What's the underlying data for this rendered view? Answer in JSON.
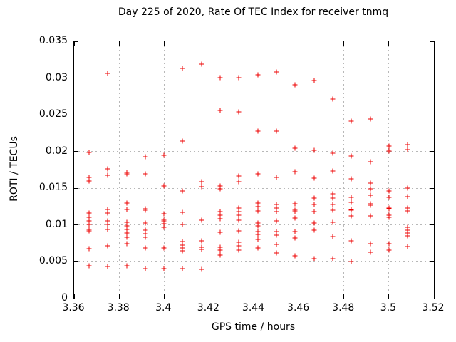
{
  "chart_data": {
    "type": "scatter",
    "title": "Day 225 of 2020, Rate Of TEC Index for receiver tnmq",
    "xlabel": "GPS time / hours",
    "ylabel": "ROTI / TECUs",
    "xlim": [
      3.36,
      3.52
    ],
    "ylim": [
      0,
      0.035
    ],
    "xticks": [
      3.36,
      3.38,
      3.4,
      3.42,
      3.44,
      3.46,
      3.48,
      3.5,
      3.52
    ],
    "xtick_labels": [
      "3.36",
      "3.38",
      "3.4",
      "3.42",
      "3.44",
      "3.46",
      "3.48",
      "3.5",
      "3.52"
    ],
    "yticks": [
      0,
      0.005,
      0.01,
      0.015,
      0.02,
      0.025,
      0.03,
      0.035
    ],
    "ytick_labels": [
      "0",
      "0.005",
      "0.01",
      "0.015",
      "0.02",
      "0.025",
      "0.03",
      "0.035"
    ],
    "grid": true,
    "legend_position": "none",
    "marker": "plus",
    "marker_color": "#ee0000",
    "grid_color": "#b8b8b8",
    "series": [
      {
        "name": "ROTI",
        "columns": [
          {
            "t": 3.3667,
            "values": [
              0.0199,
              0.0165,
              0.016,
              0.0116,
              0.0111,
              0.0106,
              0.0101,
              0.0094,
              0.0092,
              0.0068,
              0.0045
            ]
          },
          {
            "t": 3.375,
            "values": [
              0.0306,
              0.0176,
              0.0168,
              0.0121,
              0.0116,
              0.0106,
              0.0101,
              0.0094,
              0.0072,
              0.0044
            ]
          },
          {
            "t": 3.3833,
            "values": [
              0.0172,
              0.017,
              0.013,
              0.0121,
              0.0104,
              0.0099,
              0.0094,
              0.0089,
              0.0083,
              0.0075,
              0.0045
            ]
          },
          {
            "t": 3.3917,
            "values": [
              0.0193,
              0.017,
              0.0122,
              0.012,
              0.0103,
              0.0093,
              0.0088,
              0.0083,
              0.0069,
              0.0041
            ]
          },
          {
            "t": 3.4,
            "values": [
              0.0195,
              0.0153,
              0.0115,
              0.0107,
              0.0105,
              0.0102,
              0.0097,
              0.0069,
              0.0041
            ]
          },
          {
            "t": 3.4083,
            "values": [
              0.0313,
              0.0214,
              0.0146,
              0.0117,
              0.0101,
              0.0078,
              0.0073,
              0.0069,
              0.0065,
              0.0041
            ]
          },
          {
            "t": 3.4167,
            "values": [
              0.0319,
              0.0159,
              0.0152,
              0.0107,
              0.0079,
              0.007,
              0.0067,
              0.004
            ]
          },
          {
            "t": 3.425,
            "values": [
              0.0301,
              0.0256,
              0.0153,
              0.0149,
              0.0118,
              0.0113,
              0.0109,
              0.009,
              0.007,
              0.0066,
              0.0059
            ]
          },
          {
            "t": 3.4333,
            "values": [
              0.0301,
              0.0254,
              0.0167,
              0.0159,
              0.0123,
              0.0118,
              0.0113,
              0.0107,
              0.0092,
              0.0077,
              0.0072,
              0.0066
            ]
          },
          {
            "t": 3.4417,
            "values": [
              0.0304,
              0.0228,
              0.017,
              0.013,
              0.0125,
              0.0119,
              0.0103,
              0.0099,
              0.0091,
              0.0087,
              0.008,
              0.0069
            ]
          },
          {
            "t": 3.45,
            "values": [
              0.0308,
              0.0228,
              0.0165,
              0.0128,
              0.0123,
              0.0118,
              0.0106,
              0.0091,
              0.0086,
              0.0074,
              0.0062
            ]
          },
          {
            "t": 3.4583,
            "values": [
              0.0291,
              0.0205,
              0.0173,
              0.0129,
              0.012,
              0.0118,
              0.011,
              0.0091,
              0.0082,
              0.0058
            ]
          },
          {
            "t": 3.4667,
            "values": [
              0.0297,
              0.0202,
              0.0164,
              0.0137,
              0.0128,
              0.0118,
              0.0103,
              0.0093,
              0.0054
            ]
          },
          {
            "t": 3.475,
            "values": [
              0.0271,
              0.0198,
              0.0174,
              0.0143,
              0.0137,
              0.0128,
              0.012,
              0.0104,
              0.0084,
              0.0054
            ]
          },
          {
            "t": 3.4833,
            "values": [
              0.0241,
              0.0194,
              0.0163,
              0.0138,
              0.0131,
              0.0121,
              0.012,
              0.0112,
              0.0079,
              0.005
            ]
          },
          {
            "t": 3.4917,
            "values": [
              0.0244,
              0.0186,
              0.0157,
              0.0149,
              0.0141,
              0.0129,
              0.0127,
              0.0112,
              0.0075,
              0.0063
            ]
          },
          {
            "t": 3.5,
            "values": [
              0.0207,
              0.0201,
              0.0146,
              0.0138,
              0.0123,
              0.0122,
              0.0113,
              0.0111,
              0.0075,
              0.0066
            ]
          },
          {
            "t": 3.5083,
            "values": [
              0.0209,
              0.0203,
              0.015,
              0.0139,
              0.0123,
              0.0119,
              0.0097,
              0.0093,
              0.0089,
              0.0085,
              0.0071
            ]
          }
        ]
      }
    ]
  }
}
